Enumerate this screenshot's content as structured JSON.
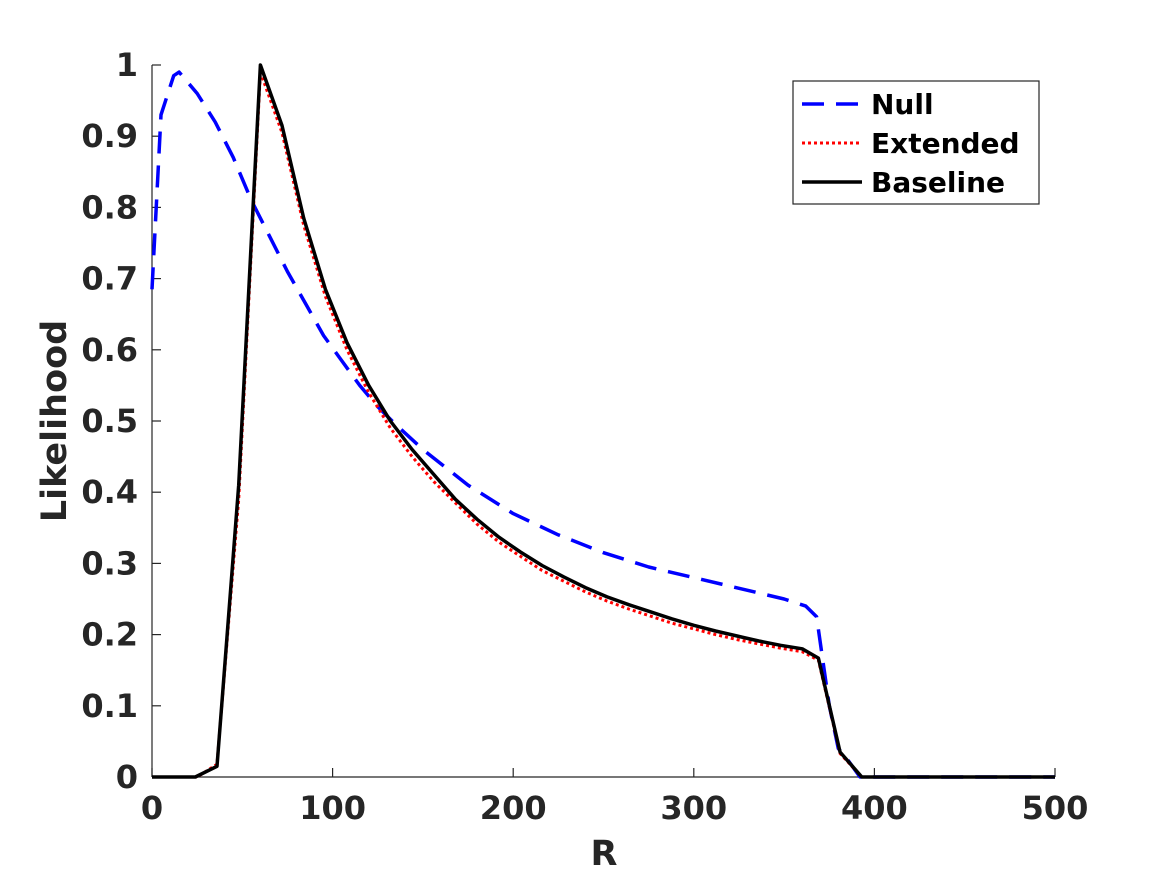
{
  "chart_data": {
    "type": "line",
    "title": "",
    "xlabel": "R",
    "ylabel": "Likelihood",
    "xlim": [
      0,
      500
    ],
    "ylim": [
      0,
      1
    ],
    "xticks": [
      0,
      100,
      200,
      300,
      400,
      500
    ],
    "yticks": [
      0,
      0.1,
      0.2,
      0.3,
      0.4,
      0.5,
      0.6,
      0.7,
      0.8,
      0.9,
      1
    ],
    "ytick_labels": [
      "0",
      "0.1",
      "0.2",
      "0.3",
      "0.4",
      "0.5",
      "0.6",
      "0.7",
      "0.8",
      "0.9",
      "1"
    ],
    "grid": false,
    "legend_position": "top-right",
    "series": [
      {
        "name": "Null",
        "style": "dashed",
        "color": "#0000ff",
        "x": [
          0,
          5,
          12,
          15,
          25,
          35,
          45,
          55,
          65,
          75,
          85,
          95,
          105,
          115,
          125,
          135,
          150,
          175,
          200,
          225,
          250,
          275,
          300,
          325,
          350,
          362,
          368,
          375,
          380,
          385,
          392,
          400,
          450,
          500
        ],
        "y": [
          0.685,
          0.93,
          0.985,
          0.99,
          0.96,
          0.92,
          0.87,
          0.81,
          0.76,
          0.71,
          0.665,
          0.62,
          0.585,
          0.55,
          0.52,
          0.495,
          0.46,
          0.41,
          0.37,
          0.34,
          0.315,
          0.295,
          0.28,
          0.265,
          0.25,
          0.24,
          0.225,
          0.1,
          0.04,
          0.025,
          0.0,
          0.0,
          0.0,
          0.0
        ]
      },
      {
        "name": "Extended",
        "style": "dotted",
        "color": "#ff0000",
        "x": [
          0,
          25,
          36,
          48,
          60,
          72,
          84,
          96,
          108,
          120,
          132,
          144,
          156,
          168,
          180,
          192,
          204,
          216,
          228,
          240,
          252,
          264,
          276,
          288,
          300,
          312,
          324,
          336,
          348,
          360,
          369,
          381,
          393,
          405,
          500
        ],
        "y": [
          0.0,
          0.0,
          0.018,
          0.39,
          0.99,
          0.905,
          0.775,
          0.675,
          0.6,
          0.54,
          0.49,
          0.45,
          0.415,
          0.385,
          0.355,
          0.33,
          0.31,
          0.29,
          0.275,
          0.26,
          0.247,
          0.236,
          0.226,
          0.216,
          0.208,
          0.2,
          0.193,
          0.187,
          0.181,
          0.176,
          0.164,
          0.033,
          0.0,
          0.0,
          0.0
        ]
      },
      {
        "name": "Baseline",
        "style": "solid",
        "color": "#000000",
        "x": [
          0,
          24,
          36,
          48,
          60,
          72,
          84,
          96,
          108,
          120,
          132,
          144,
          156,
          168,
          180,
          192,
          204,
          216,
          228,
          240,
          252,
          264,
          276,
          288,
          300,
          312,
          324,
          336,
          348,
          360,
          369,
          381,
          393,
          405,
          500
        ],
        "y": [
          0.0,
          0.0,
          0.015,
          0.41,
          1.0,
          0.915,
          0.785,
          0.685,
          0.61,
          0.55,
          0.5,
          0.46,
          0.425,
          0.39,
          0.362,
          0.337,
          0.316,
          0.297,
          0.281,
          0.266,
          0.253,
          0.242,
          0.232,
          0.222,
          0.213,
          0.205,
          0.198,
          0.191,
          0.185,
          0.18,
          0.167,
          0.035,
          0.0,
          0.0,
          0.0
        ]
      }
    ]
  }
}
